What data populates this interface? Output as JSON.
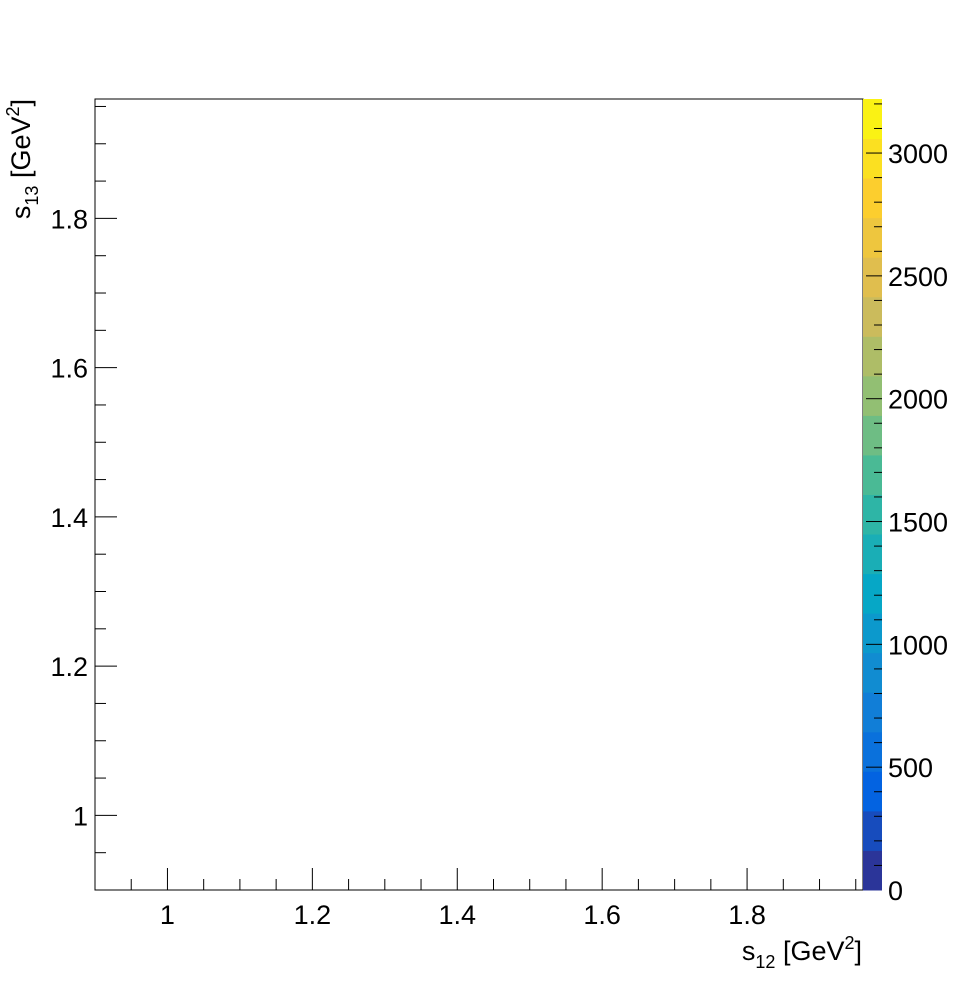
{
  "chart_data": {
    "type": "heatmap",
    "title": "",
    "xlabel": "s_{12} [GeV^{2}]",
    "xlabel_parts": {
      "base": "s",
      "sub": "12",
      "unit_open": " [GeV",
      "sup": "2",
      "unit_close": "]"
    },
    "ylabel": "s_{13} [GeV^{2}]",
    "ylabel_parts": {
      "base": "s",
      "sub": "13",
      "unit_open": " [GeV",
      "sup": "2",
      "unit_close": "]"
    },
    "xlim": [
      0.9,
      1.96
    ],
    "ylim": [
      0.9,
      1.96
    ],
    "bins": {
      "x": 40,
      "y": 40
    },
    "x_ticks": [
      "1",
      "1.2",
      "1.4",
      "1.6",
      "1.8"
    ],
    "x_tick_values": [
      1.0,
      1.2,
      1.4,
      1.6,
      1.8
    ],
    "y_ticks": [
      "1",
      "1.2",
      "1.4",
      "1.6",
      "1.8"
    ],
    "y_tick_values": [
      1.0,
      1.2,
      1.4,
      1.6,
      1.8
    ],
    "colorbar": {
      "range": [
        0,
        3220
      ],
      "ticks": [
        "0",
        "500",
        "1000",
        "1500",
        "2000",
        "2500",
        "3000"
      ],
      "tick_values": [
        0,
        500,
        1000,
        1500,
        2000,
        2500,
        3000
      ],
      "palette": "kBird",
      "colors": [
        "#352a87",
        "#0363e1",
        "#1485d4",
        "#06a7c6",
        "#38b99e",
        "#92bf73",
        "#d9ba56",
        "#fcce2e",
        "#f9fb0e"
      ]
    },
    "legend": "none",
    "grid": false
  }
}
